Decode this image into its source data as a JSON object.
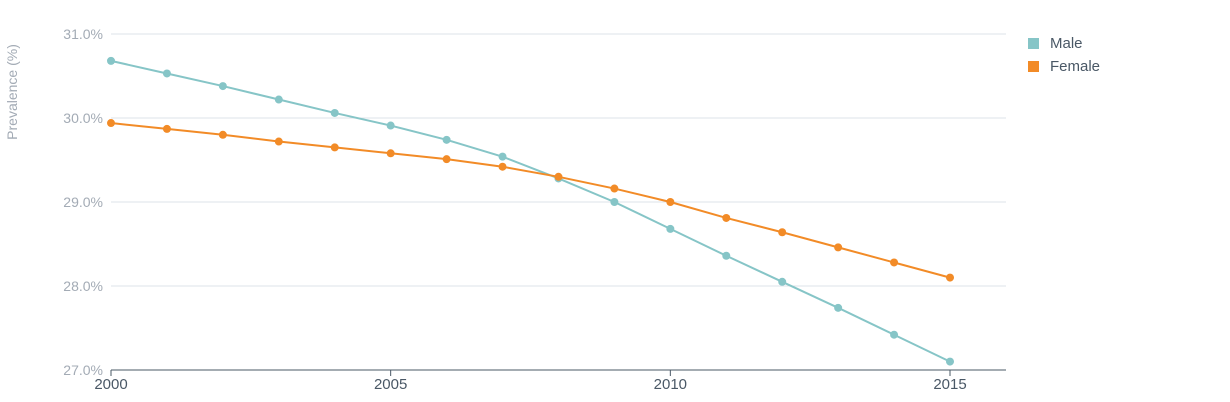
{
  "chart_data": {
    "type": "line",
    "ylabel": "Prevalence (%)",
    "ylim": [
      27.0,
      31.0
    ],
    "yticks": [
      27.0,
      28.0,
      29.0,
      30.0,
      31.0
    ],
    "ytick_suffix": "%",
    "xlim": [
      2000,
      2016
    ],
    "xticks": [
      2000,
      2005,
      2010,
      2015
    ],
    "grid": true,
    "legend_position": "top-right",
    "x": [
      2000,
      2001,
      2002,
      2003,
      2004,
      2005,
      2006,
      2007,
      2008,
      2009,
      2010,
      2011,
      2012,
      2013,
      2014,
      2015
    ],
    "series": [
      {
        "name": "Male",
        "color": "#86c5c7",
        "values": [
          30.68,
          30.53,
          30.38,
          30.22,
          30.06,
          29.91,
          29.74,
          29.54,
          29.28,
          29.0,
          28.68,
          28.36,
          28.05,
          27.74,
          27.42,
          27.1
        ]
      },
      {
        "name": "Female",
        "color": "#f28b27",
        "values": [
          29.94,
          29.87,
          29.8,
          29.72,
          29.65,
          29.58,
          29.51,
          29.42,
          29.3,
          29.16,
          29.0,
          28.81,
          28.64,
          28.46,
          28.28,
          28.1
        ]
      }
    ]
  }
}
